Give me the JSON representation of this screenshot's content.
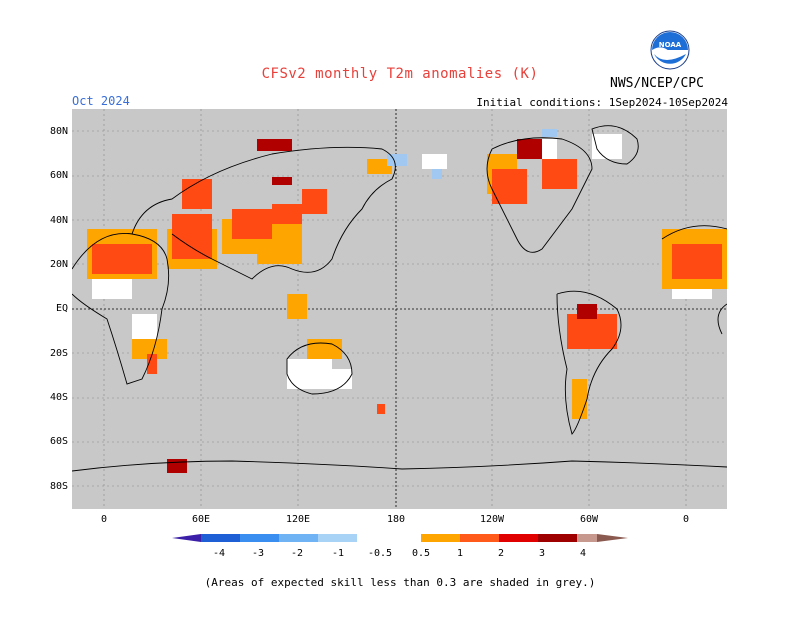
{
  "title": "CFSv2 monthly T2m anomalies (K)",
  "month": "Oct 2024",
  "initial_conditions": "Initial conditions: 1Sep2024-10Sep2024",
  "agency": "NWS/NCEP/CPC",
  "logo_text": "NOAA",
  "lat_labels": [
    "80N",
    "60N",
    "40N",
    "20N",
    "EQ",
    "20S",
    "40S",
    "60S",
    "80S"
  ],
  "lon_labels": [
    "0",
    "60E",
    "120E",
    "180",
    "120W",
    "60W",
    "0"
  ],
  "colorbar": {
    "ticks": [
      "-4",
      "-3",
      "-2",
      "-1",
      "-0.5",
      "0.5",
      "1",
      "2",
      "3",
      "4"
    ],
    "colors": [
      "#3b1fa8",
      "#1f5fd6",
      "#3a8ef0",
      "#6fb3f5",
      "#a9d2f7",
      "#ffffff",
      "#ffa500",
      "#ff5a1a",
      "#e00000",
      "#9e0000",
      "#c7988e",
      "#8a5a50"
    ]
  },
  "footer": "(Areas of expected skill less than 0.3 are shaded in grey.)",
  "colors": {
    "land_grey": "#c8c8c8",
    "orange": "#ffa500",
    "red_orange": "#ff4a14",
    "dark_red": "#b00000",
    "light_blue": "#a0c8f0"
  }
}
